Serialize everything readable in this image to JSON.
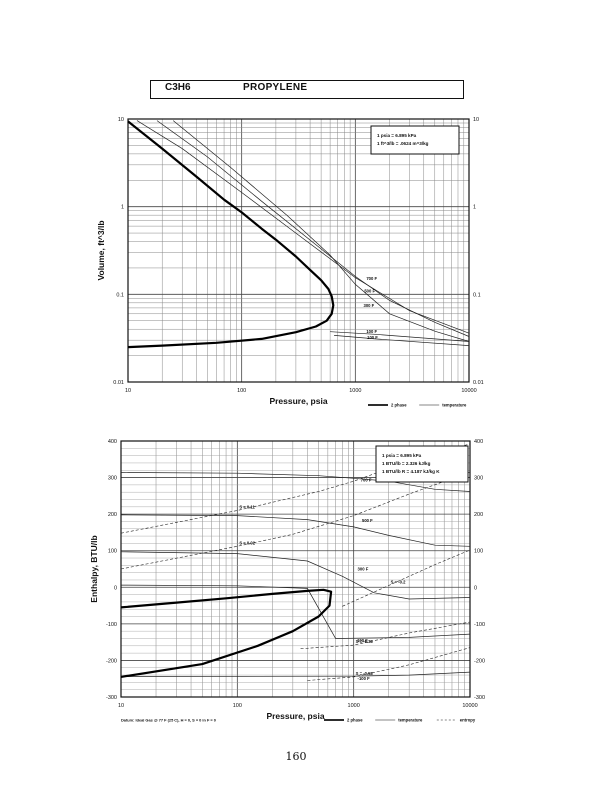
{
  "header": {
    "formula": "C3H6",
    "compound": "PROPYLENE"
  },
  "page_number": "160",
  "chart_data": [
    {
      "type": "line",
      "xscale": "log",
      "yscale": "log",
      "xlim": [
        10,
        10000
      ],
      "ylim": [
        0.01,
        10
      ],
      "xlabel": "Pressure, psia",
      "ylabel": "Volume, ft^3/lb",
      "xticks": [
        {
          "v": 10,
          "label": "10"
        },
        {
          "v": 100,
          "label": "100"
        },
        {
          "v": 1000,
          "label": "1000"
        },
        {
          "v": 10000,
          "label": "10000"
        }
      ],
      "yticks": [
        {
          "v": 0.01,
          "label": "0.01"
        },
        {
          "v": 0.1,
          "label": "0.1"
        },
        {
          "v": 1,
          "label": "1"
        },
        {
          "v": 10,
          "label": "10"
        }
      ],
      "conversions": [
        "1 psia = 6.895 kPa",
        "1 ft^3/lb = .0624 m^3/kg"
      ],
      "legend": [
        {
          "label": "2 phase",
          "style": "bold"
        },
        {
          "label": "temperature",
          "style": "thin"
        }
      ],
      "dome": {
        "name": "2 phase",
        "points": [
          [
            10,
            9.4
          ],
          [
            20,
            4.6
          ],
          [
            40,
            2.2
          ],
          [
            70,
            1.2
          ],
          [
            100,
            0.86
          ],
          [
            150,
            0.56
          ],
          [
            200,
            0.42
          ],
          [
            300,
            0.27
          ],
          [
            400,
            0.19
          ],
          [
            500,
            0.145
          ],
          [
            580,
            0.115
          ],
          [
            620,
            0.095
          ],
          [
            640,
            0.075
          ],
          [
            620,
            0.06
          ],
          [
            560,
            0.05
          ],
          [
            450,
            0.043
          ],
          [
            300,
            0.037
          ],
          [
            150,
            0.031
          ],
          [
            60,
            0.028
          ],
          [
            20,
            0.026
          ],
          [
            10,
            0.025
          ]
        ]
      },
      "isotherms": [
        {
          "label": "700 F",
          "points": [
            [
              12,
              9.6
            ],
            [
              30,
              4.6
            ],
            [
              100,
              1.45
            ],
            [
              300,
              0.5
            ],
            [
              1000,
              0.155
            ],
            [
              3000,
              0.065
            ],
            [
              10000,
              0.036
            ]
          ]
        },
        {
          "label": "500 F",
          "points": [
            [
              18,
              9.6
            ],
            [
              50,
              3.7
            ],
            [
              150,
              1.15
            ],
            [
              500,
              0.33
            ],
            [
              1000,
              0.16
            ],
            [
              2000,
              0.085
            ],
            [
              5000,
              0.048
            ],
            [
              10000,
              0.033
            ]
          ]
        },
        {
          "label": "300 F",
          "points": [
            [
              25,
              9.6
            ],
            [
              80,
              2.8
            ],
            [
              250,
              0.8
            ],
            [
              600,
              0.28
            ],
            [
              1000,
              0.13
            ],
            [
              2000,
              0.06
            ],
            [
              5000,
              0.038
            ],
            [
              10000,
              0.029
            ]
          ]
        },
        {
          "label": "100 F",
          "points": [
            [
              600,
              0.0375
            ],
            [
              1500,
              0.035
            ],
            [
              10000,
              0.029
            ]
          ]
        },
        {
          "label": "100 F",
          "points": [
            [
              650,
              0.034
            ],
            [
              1500,
              0.031
            ],
            [
              10000,
              0.026
            ]
          ]
        }
      ]
    },
    {
      "type": "line",
      "xscale": "log",
      "yscale": "linear",
      "xlim": [
        10,
        10000
      ],
      "ylim": [
        -300,
        400
      ],
      "xlabel": "Pressure, psia",
      "ylabel": "Enthalpy, BTU/lb",
      "xticks": [
        {
          "v": 10,
          "label": "10"
        },
        {
          "v": 100,
          "label": "100"
        },
        {
          "v": 1000,
          "label": "1000"
        },
        {
          "v": 10000,
          "label": "10000"
        }
      ],
      "yticks": [
        {
          "v": -300,
          "label": "-300"
        },
        {
          "v": -200,
          "label": "-200"
        },
        {
          "v": -100,
          "label": "-100"
        },
        {
          "v": 0,
          "label": "0"
        },
        {
          "v": 100,
          "label": "100"
        },
        {
          "v": 200,
          "label": "200"
        },
        {
          "v": 300,
          "label": "300"
        },
        {
          "v": 400,
          "label": "400"
        }
      ],
      "conversions": [
        "1 psia = 6.895 kPa",
        "1 BTU/lb = 2.326 kJ/kg",
        "1 BTU/lb R = 4.187 kJ/kg K"
      ],
      "datum": "Datum: Ideal Gas @ 77 F (25 C), H = 0, S = 0 in F = 0",
      "legend": [
        {
          "label": "2 phase",
          "style": "bold"
        },
        {
          "label": "temperature",
          "style": "thin"
        },
        {
          "label": "entropy",
          "style": "dashed"
        }
      ],
      "dome": {
        "name": "2 phase",
        "points": [
          [
            10,
            -55
          ],
          [
            30,
            -42
          ],
          [
            80,
            -30
          ],
          [
            200,
            -18
          ],
          [
            400,
            -10
          ],
          [
            550,
            -7
          ],
          [
            640,
            -12
          ],
          [
            620,
            -50
          ],
          [
            500,
            -80
          ],
          [
            300,
            -120
          ],
          [
            150,
            -160
          ],
          [
            50,
            -210
          ],
          [
            10,
            -245
          ]
        ]
      },
      "isotherms": [
        {
          "label": "700 F",
          "points": [
            [
              10,
              314
            ],
            [
              100,
              312
            ],
            [
              500,
              305
            ],
            [
              1000,
              298
            ],
            [
              2000,
              290
            ],
            [
              5000,
              268
            ],
            [
              10000,
              262
            ]
          ]
        },
        {
          "label": "500 F",
          "points": [
            [
              10,
              198
            ],
            [
              100,
              196
            ],
            [
              400,
              185
            ],
            [
              1000,
              165
            ],
            [
              2000,
              142
            ],
            [
              5000,
              115
            ],
            [
              10000,
              112
            ]
          ]
        },
        {
          "label": "300 F",
          "points": [
            [
              10,
              97
            ],
            [
              100,
              92
            ],
            [
              400,
              72
            ],
            [
              800,
              30
            ],
            [
              1500,
              -15
            ],
            [
              3000,
              -32
            ],
            [
              10000,
              -28
            ]
          ]
        },
        {
          "label": "100 F",
          "points": [
            [
              10,
              6
            ],
            [
              100,
              4
            ],
            [
              400,
              -3
            ],
            [
              700,
              -140
            ],
            [
              3000,
              -137
            ],
            [
              10000,
              -128
            ]
          ]
        },
        {
          "label": "-100 F",
          "points": [
            [
              10,
              -244
            ],
            [
              1000,
              -243
            ],
            [
              3000,
              -240
            ],
            [
              10000,
              -232
            ]
          ]
        }
      ],
      "entropy_lines": [
        {
          "label": "S = 0.11",
          "points": [
            [
              10,
              148
            ],
            [
              100,
              210
            ],
            [
              500,
              262
            ],
            [
              1000,
              290
            ],
            [
              3000,
              345
            ],
            [
              10000,
              392
            ]
          ]
        },
        {
          "label": "S = 0.02",
          "points": [
            [
              10,
              50
            ],
            [
              100,
              112
            ],
            [
              300,
              145
            ],
            [
              1000,
              196
            ],
            [
              3000,
              255
            ],
            [
              10000,
              315
            ]
          ]
        },
        {
          "label": "S = -0.2",
          "points": [
            [
              800,
              -52
            ],
            [
              2000,
              5
            ],
            [
              5000,
              62
            ],
            [
              10000,
              102
            ]
          ]
        },
        {
          "label": "S = -0.38",
          "points": [
            [
              350,
              -168
            ],
            [
              1000,
              -158
            ],
            [
              3000,
              -125
            ],
            [
              10000,
              -95
            ]
          ]
        },
        {
          "label": "S = -0.58",
          "points": [
            [
              400,
              -255
            ],
            [
              1000,
              -245
            ],
            [
              3000,
              -212
            ],
            [
              10000,
              -165
            ]
          ]
        }
      ]
    }
  ]
}
